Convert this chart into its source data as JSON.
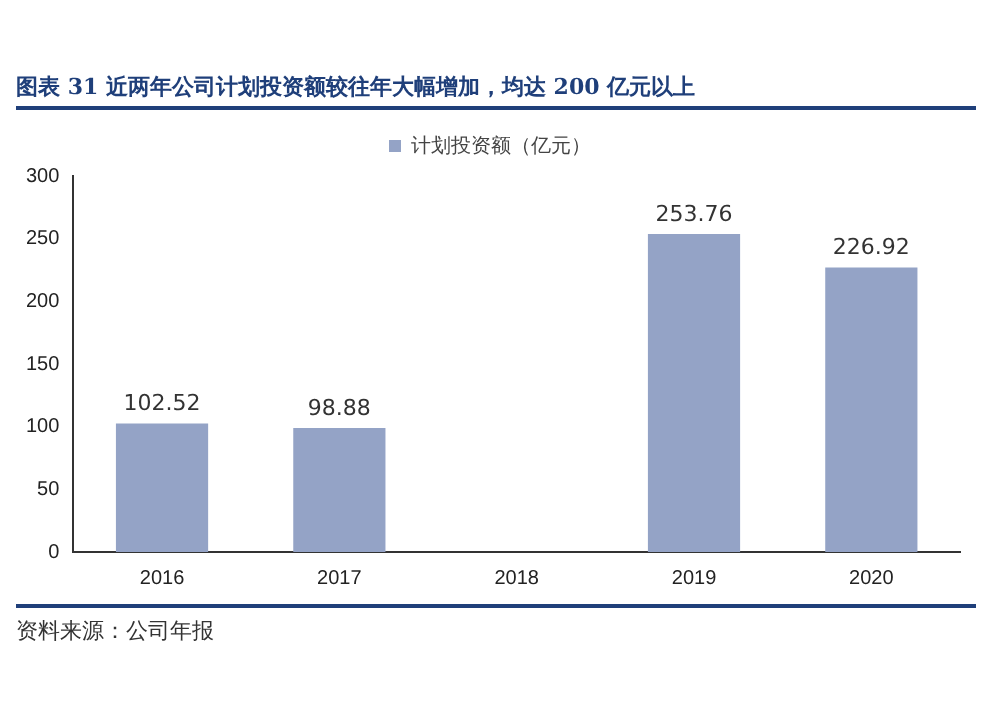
{
  "chart_data": {
    "type": "bar",
    "title": "图表 31   近两年公司计划投资额较往年大幅增加，均达 200 亿元以上",
    "categories": [
      "2016",
      "2017",
      "2018",
      "2019",
      "2020"
    ],
    "series": [
      {
        "name": "计划投资额（亿元）",
        "color": "#94a3c6",
        "values": [
          102.52,
          98.88,
          null,
          253.76,
          226.92
        ]
      }
    ],
    "ylim": [
      0,
      300
    ],
    "yticks": [
      0,
      50,
      100,
      150,
      200,
      250,
      300
    ],
    "grid": false,
    "legend": "top",
    "data_labels": true,
    "annotations": [
      "资料来源：公司年报"
    ]
  }
}
